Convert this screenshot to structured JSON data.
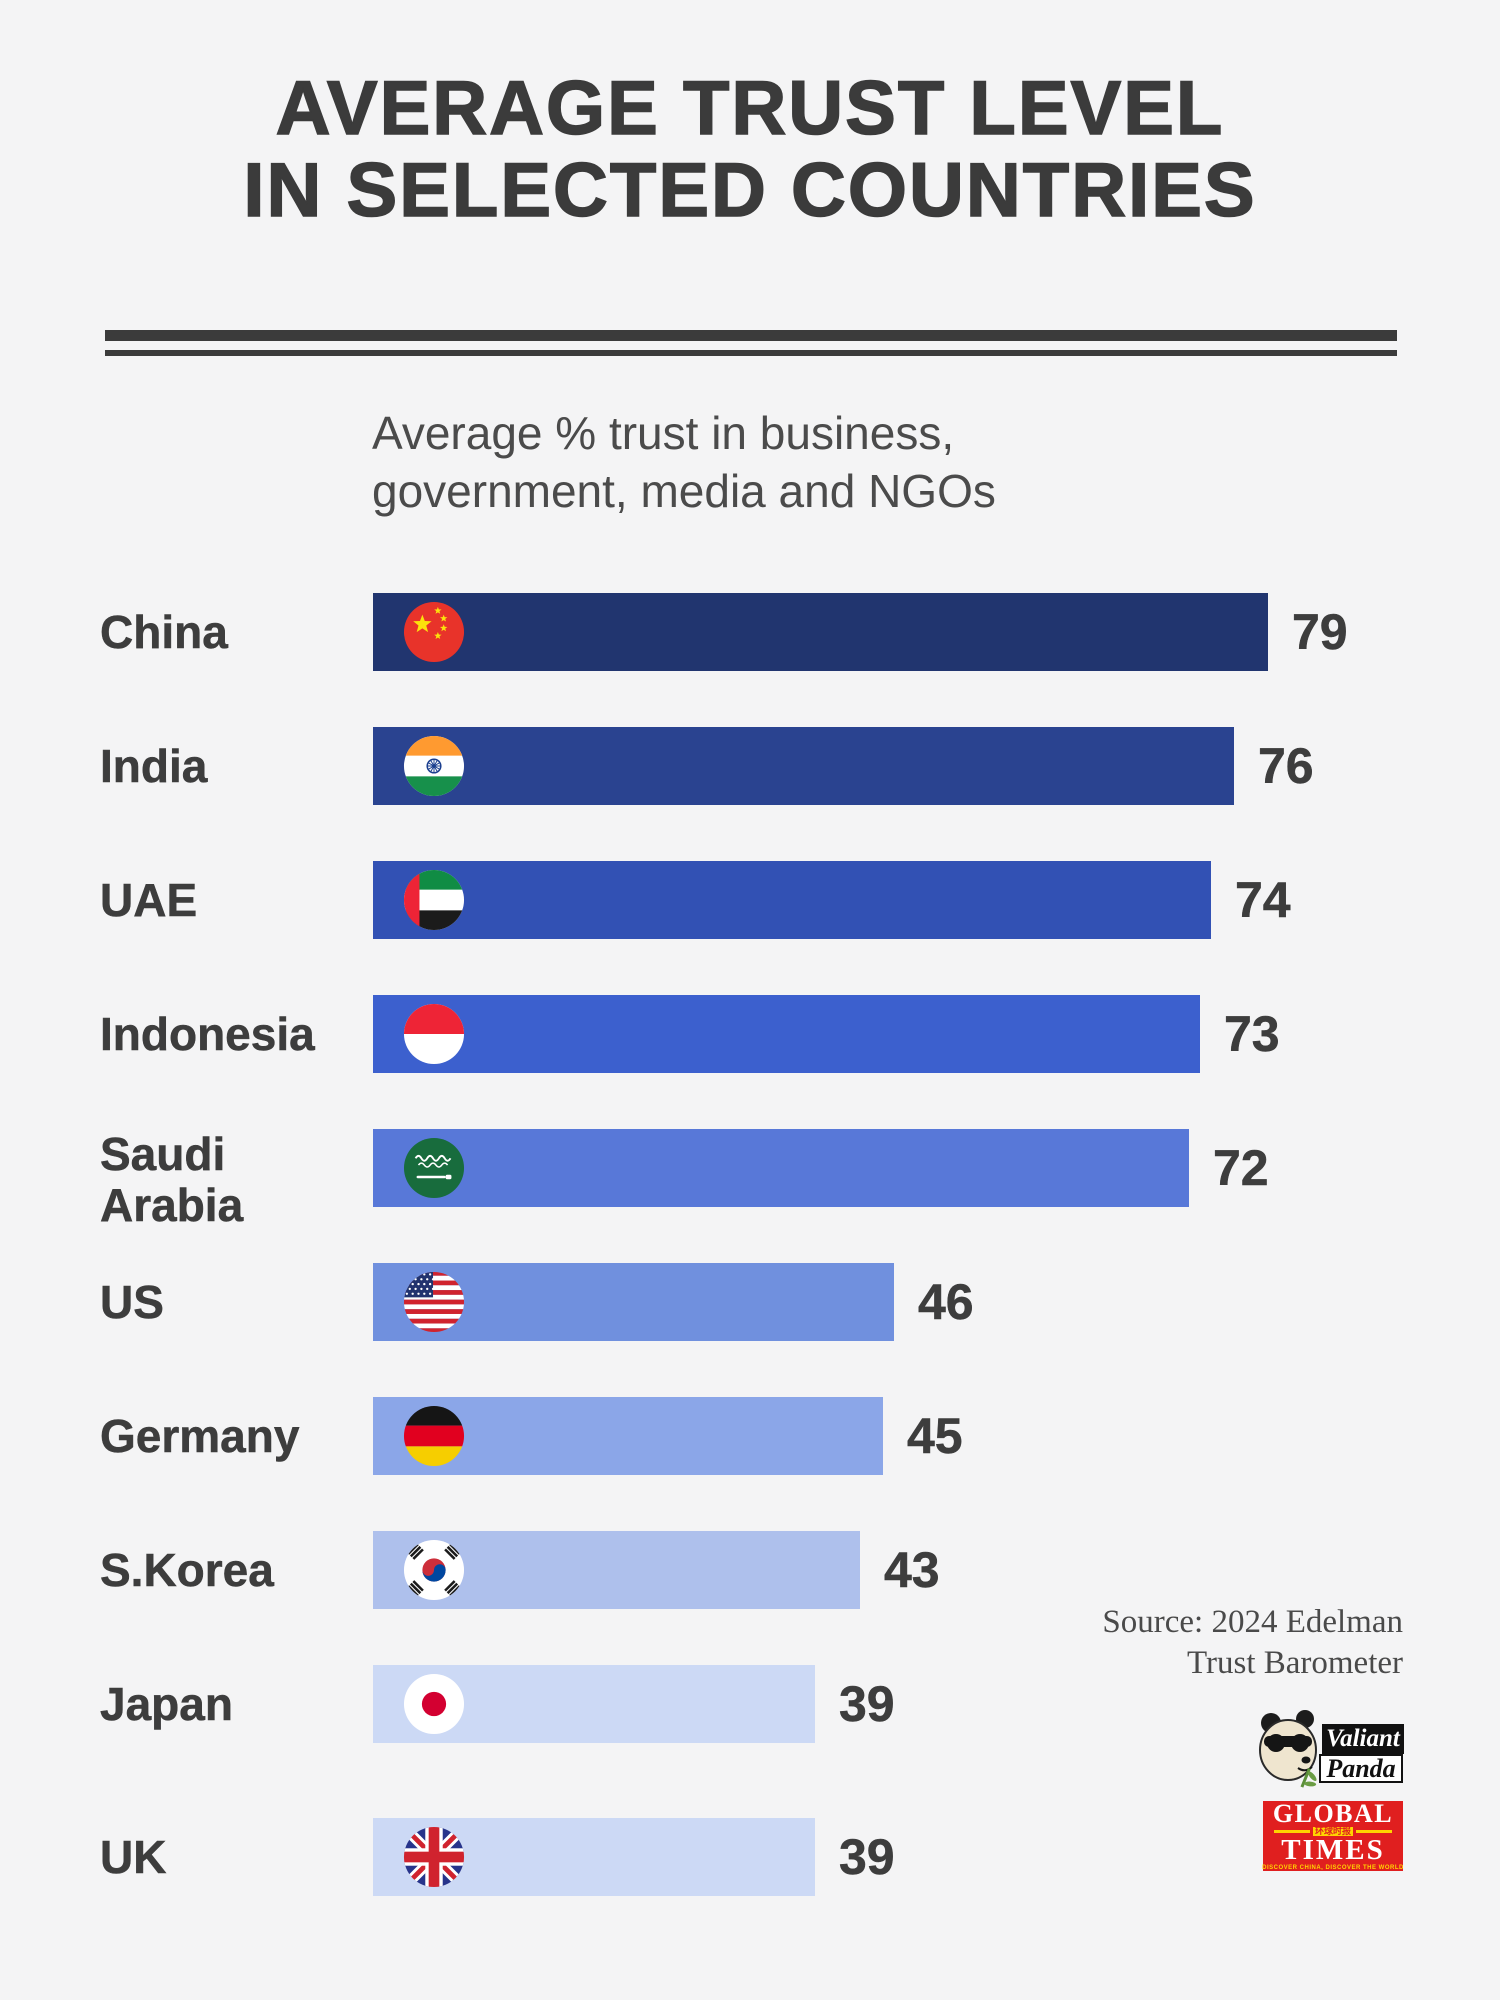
{
  "background_color": "#f4f4f5",
  "title": {
    "line1": "AVERAGE TRUST LEVEL",
    "line2": "IN SELECTED COUNTRIES"
  },
  "subtitle": {
    "line1": "Average % trust in business,",
    "line2": "government, media and NGOs"
  },
  "chart_data": {
    "type": "bar",
    "orientation": "horizontal",
    "title": "Average trust level in selected countries",
    "value_description": "Average % trust in business, government, media and NGOs",
    "xlim": [
      0,
      79
    ],
    "categories": [
      "China",
      "India",
      "UAE",
      "Indonesia",
      "Saudi Arabia",
      "US",
      "Germany",
      "S.Korea",
      "Japan",
      "UK"
    ],
    "values": [
      79,
      76,
      74,
      73,
      72,
      46,
      45,
      43,
      39,
      39
    ],
    "bar_colors": [
      "#21356f",
      "#2a4390",
      "#3251b4",
      "#3c60ce",
      "#5878d8",
      "#7090de",
      "#8ba6e8",
      "#aec0ec",
      "#ccd9f5",
      "#ccd9f5"
    ],
    "flags": [
      "china",
      "india",
      "uae",
      "indonesia",
      "saudi-arabia",
      "us",
      "germany",
      "s-korea",
      "japan",
      "uk"
    ],
    "grid": false,
    "legend": false
  },
  "source": {
    "line1": "Source: 2024 Edelman",
    "line2": "Trust Barometer"
  },
  "logos": {
    "valiant_panda": {
      "top": "Valiant",
      "bottom": "Panda"
    },
    "global_times": {
      "top": "GLOBAL",
      "bottom": "TIMES",
      "chinese": "环球时报",
      "tagline": "DISCOVER CHINA, DISCOVER THE WORLD",
      "bg_color": "#e01f1f",
      "accent_color": "#ffd400"
    }
  }
}
